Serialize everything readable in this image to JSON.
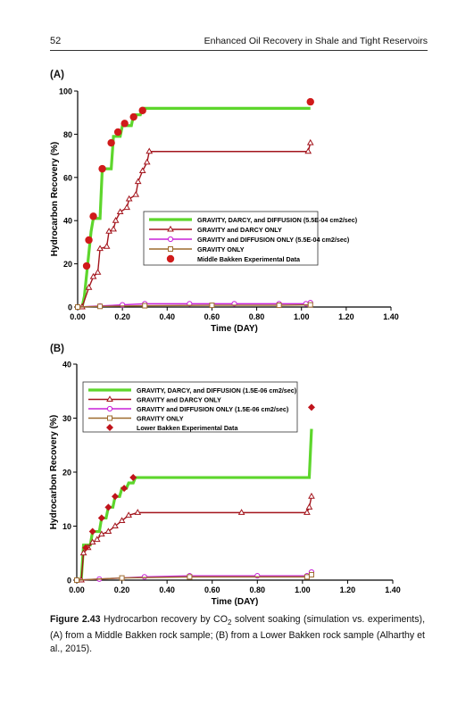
{
  "header": {
    "page_number": "52",
    "running_title": "Enhanced Oil Recovery in Shale and Tight Reservoirs"
  },
  "panels": {
    "a_label": "(A)",
    "b_label": "(B)"
  },
  "caption": {
    "figure_label": "Figure 2.43",
    "text_before_sub": " Hydrocarbon recovery by CO",
    "sub": "2",
    "text_after_sub": " solvent soaking (simulation vs. experiments), (A) from a Middle Bakken rock sample; (B) from a Lower Bakken rock sample (Alharthy et al., 2015)."
  },
  "chart_data": [
    {
      "type": "line",
      "xlabel": "Time (DAY)",
      "ylabel": "Hydrocarbon Recovery (%)",
      "xlim": [
        0,
        1.4
      ],
      "ylim": [
        0,
        100
      ],
      "x_ticks": [
        "0.00",
        "0.20",
        "0.40",
        "0.60",
        "0.80",
        "1.00",
        "1.20",
        "1.40"
      ],
      "y_ticks": [
        "0",
        "20",
        "40",
        "60",
        "80",
        "100"
      ],
      "legend_position": "center-right",
      "series": [
        {
          "name": "GRAVITY, DARCY, and DIFFUSION (5.5E-04 cm2/sec)",
          "color": "#5dd62c",
          "style": "step-thick",
          "points": [
            [
              0.02,
              0
            ],
            [
              0.03,
              5
            ],
            [
              0.04,
              15
            ],
            [
              0.05,
              25
            ],
            [
              0.06,
              35
            ],
            [
              0.07,
              41
            ],
            [
              0.1,
              41
            ],
            [
              0.11,
              64
            ],
            [
              0.15,
              64
            ],
            [
              0.16,
              79
            ],
            [
              0.19,
              79
            ],
            [
              0.2,
              84
            ],
            [
              0.24,
              84
            ],
            [
              0.25,
              89
            ],
            [
              0.28,
              89
            ],
            [
              0.29,
              92
            ],
            [
              1.04,
              92
            ]
          ]
        },
        {
          "name": "GRAVITY and DARCY ONLY",
          "color": "#a3141c",
          "marker": "triangle",
          "points": [
            [
              0.02,
              0
            ],
            [
              0.05,
              9
            ],
            [
              0.07,
              14
            ],
            [
              0.09,
              16
            ],
            [
              0.1,
              27
            ],
            [
              0.13,
              28
            ],
            [
              0.14,
              35
            ],
            [
              0.16,
              36
            ],
            [
              0.17,
              40
            ],
            [
              0.19,
              44
            ],
            [
              0.22,
              46
            ],
            [
              0.23,
              50
            ],
            [
              0.26,
              52
            ],
            [
              0.27,
              58
            ],
            [
              0.29,
              63
            ],
            [
              0.31,
              67
            ],
            [
              0.32,
              72
            ],
            [
              1.03,
              72
            ],
            [
              1.04,
              76
            ]
          ]
        },
        {
          "name": "GRAVITY and DIFFUSION ONLY (5.5E-04 cm2/sec)",
          "color": "#c820d8",
          "marker": "circle",
          "points": [
            [
              0.0,
              0
            ],
            [
              0.1,
              0.5
            ],
            [
              0.2,
              1
            ],
            [
              0.3,
              1.5
            ],
            [
              0.5,
              1.5
            ],
            [
              0.7,
              1.5
            ],
            [
              0.9,
              1.5
            ],
            [
              1.02,
              1.5
            ],
            [
              1.04,
              2
            ]
          ]
        },
        {
          "name": "GRAVITY ONLY",
          "color": "#9e6b2e",
          "marker": "square",
          "points": [
            [
              0.0,
              0
            ],
            [
              0.1,
              0.3
            ],
            [
              0.3,
              0.6
            ],
            [
              0.6,
              0.8
            ],
            [
              0.9,
              0.8
            ],
            [
              1.04,
              1
            ]
          ]
        },
        {
          "name": "Middle Bakken Experimental Data",
          "color": "#d01a1a",
          "marker": "dot",
          "points": [
            [
              0.04,
              19
            ],
            [
              0.05,
              31
            ],
            [
              0.07,
              42
            ],
            [
              0.11,
              64
            ],
            [
              0.15,
              76
            ],
            [
              0.18,
              81
            ],
            [
              0.21,
              85
            ],
            [
              0.25,
              88
            ],
            [
              0.29,
              91
            ],
            [
              1.04,
              95
            ]
          ]
        }
      ]
    },
    {
      "type": "line",
      "xlabel": "Time (DAY)",
      "ylabel": "Hydrocarbon Recovery (%)",
      "xlim": [
        0,
        1.4
      ],
      "ylim": [
        0,
        40
      ],
      "x_ticks": [
        "0.00",
        "0.20",
        "0.40",
        "0.60",
        "0.80",
        "1.00",
        "1.20",
        "1.40"
      ],
      "y_ticks": [
        "0",
        "10",
        "20",
        "30",
        "40"
      ],
      "legend_position": "top-left",
      "series": [
        {
          "name": "GRAVITY, DARCY, and DIFFUSION (1.5E-06 cm2/sec)",
          "color": "#5dd62c",
          "style": "step-thick",
          "points": [
            [
              0.02,
              0
            ],
            [
              0.03,
              6.5
            ],
            [
              0.06,
              6.5
            ],
            [
              0.07,
              9
            ],
            [
              0.1,
              9
            ],
            [
              0.11,
              11.5
            ],
            [
              0.13,
              11.5
            ],
            [
              0.14,
              13.5
            ],
            [
              0.16,
              13.5
            ],
            [
              0.17,
              15.5
            ],
            [
              0.19,
              15.5
            ],
            [
              0.2,
              17
            ],
            [
              0.22,
              17
            ],
            [
              0.23,
              18
            ],
            [
              0.25,
              18
            ],
            [
              0.26,
              19
            ],
            [
              1.03,
              19
            ],
            [
              1.04,
              28
            ]
          ]
        },
        {
          "name": "GRAVITY and DARCY ONLY",
          "color": "#a3141c",
          "marker": "triangle",
          "points": [
            [
              0.02,
              0
            ],
            [
              0.03,
              5
            ],
            [
              0.05,
              6
            ],
            [
              0.07,
              7
            ],
            [
              0.09,
              7.5
            ],
            [
              0.11,
              8.5
            ],
            [
              0.14,
              9
            ],
            [
              0.17,
              10
            ],
            [
              0.2,
              11
            ],
            [
              0.23,
              12
            ],
            [
              0.27,
              12.5
            ],
            [
              0.73,
              12.5
            ],
            [
              1.02,
              12.5
            ],
            [
              1.03,
              13.5
            ],
            [
              1.04,
              15.5
            ]
          ]
        },
        {
          "name": "GRAVITY and DIFFUSION ONLY (1.5E-06 cm2/sec)",
          "color": "#c820d8",
          "marker": "circle",
          "points": [
            [
              0.0,
              0
            ],
            [
              0.1,
              0.2
            ],
            [
              0.3,
              0.6
            ],
            [
              0.5,
              0.8
            ],
            [
              0.8,
              0.8
            ],
            [
              1.02,
              0.8
            ],
            [
              1.04,
              1.5
            ]
          ]
        },
        {
          "name": "GRAVITY ONLY",
          "color": "#9e6b2e",
          "marker": "square",
          "points": [
            [
              0.0,
              0
            ],
            [
              0.2,
              0.4
            ],
            [
              0.5,
              0.6
            ],
            [
              1.02,
              0.6
            ],
            [
              1.04,
              1
            ]
          ]
        },
        {
          "name": "Lower Bakken Experimental Data",
          "color": "#c0141c",
          "marker": "diamond",
          "points": [
            [
              0.04,
              6
            ],
            [
              0.07,
              9
            ],
            [
              0.11,
              11.5
            ],
            [
              0.14,
              13.5
            ],
            [
              0.17,
              15.5
            ],
            [
              0.21,
              17
            ],
            [
              0.25,
              19
            ],
            [
              1.04,
              32
            ]
          ]
        }
      ]
    }
  ]
}
